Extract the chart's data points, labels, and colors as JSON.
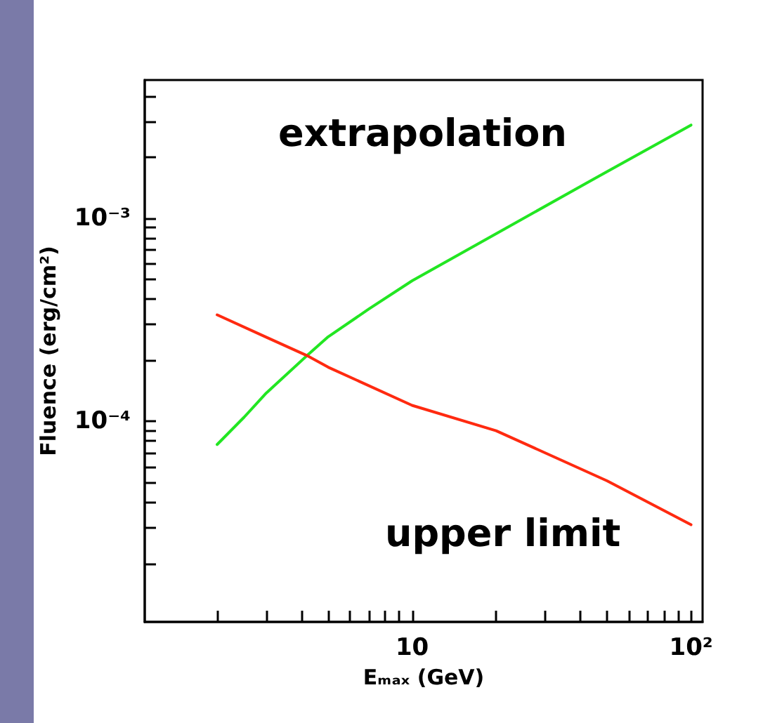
{
  "chart_data": {
    "type": "line",
    "xlabel": "Eₘₐₓ (GeV)",
    "ylabel": "Fluence (erg/cm²)",
    "log": "xy",
    "xlim": [
      1.1,
      110
    ],
    "ylim": [
      1.03e-05,
      0.0048
    ],
    "xticks": [
      {
        "value": 2,
        "label": null
      },
      {
        "value": 3,
        "label": null
      },
      {
        "value": 4,
        "label": null
      },
      {
        "value": 5,
        "label": null
      },
      {
        "value": 6,
        "label": null
      },
      {
        "value": 7,
        "label": null
      },
      {
        "value": 8,
        "label": null
      },
      {
        "value": 9,
        "label": null
      },
      10,
      {
        "value": 20,
        "label": null
      },
      {
        "value": 30,
        "label": null
      },
      {
        "value": 40,
        "label": null
      },
      {
        "value": 50,
        "label": null
      },
      {
        "value": 60,
        "label": null
      },
      {
        "value": 70,
        "label": null
      },
      {
        "value": 80,
        "label": null
      },
      {
        "value": 90,
        "label": null
      },
      {
        "value": 100,
        "label": "10²"
      }
    ],
    "yticks": [
      {
        "value": 2e-05,
        "label": null
      },
      {
        "value": 3e-05,
        "label": null
      },
      {
        "value": 4e-05,
        "label": null
      },
      {
        "value": 5e-05,
        "label": null
      },
      {
        "value": 6e-05,
        "label": null
      },
      {
        "value": 7e-05,
        "label": null
      },
      {
        "value": 8e-05,
        "label": null
      },
      {
        "value": 9e-05,
        "label": null
      },
      {
        "value": 0.0001,
        "label": "10⁻⁴"
      },
      {
        "value": 0.0002,
        "label": null
      },
      {
        "value": 0.0003,
        "label": null
      },
      {
        "value": 0.0004,
        "label": null
      },
      {
        "value": 0.0005,
        "label": null
      },
      {
        "value": 0.0006,
        "label": null
      },
      {
        "value": 0.0007,
        "label": null
      },
      {
        "value": 0.0008,
        "label": null
      },
      {
        "value": 0.0009,
        "label": null
      },
      {
        "value": 0.001,
        "label": "10⁻³"
      },
      {
        "value": 0.002,
        "label": null
      },
      {
        "value": 0.003,
        "label": null
      },
      {
        "value": 0.004,
        "label": null
      }
    ],
    "grid": false,
    "legend": false,
    "marker": "none",
    "line_style": "solid",
    "x": [
      2,
      2.5,
      3,
      4.2,
      5,
      7,
      10,
      20,
      50,
      100
    ],
    "series": [
      {
        "name": "extrapolation",
        "color": "#22e622",
        "values": [
          7.7e-05,
          0.000105,
          0.000138,
          0.000211,
          0.000261,
          0.000358,
          0.000493,
          0.00084,
          0.0017,
          0.00288
        ]
      },
      {
        "name": "upper limit",
        "color": "#ff2a10",
        "values": [
          0.000335,
          null,
          0.00026,
          0.000211,
          0.000185,
          null,
          0.00012,
          9e-05,
          5.1e-05,
          3.1e-05
        ]
      }
    ]
  }
}
